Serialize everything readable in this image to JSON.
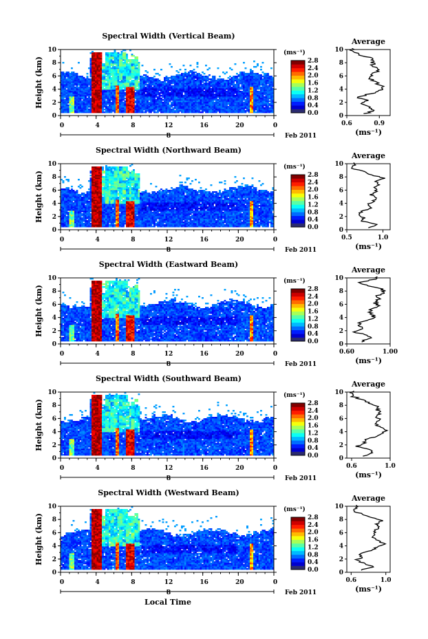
{
  "figure": {
    "xlabel": "Local Time",
    "date_label": "Feb 2011",
    "day_marker": "8",
    "colorbar_unit": "(ms⁻¹)",
    "colorbar_ticks": [
      "0.0",
      "0.4",
      "0.8",
      "1.2",
      "1.6",
      "2.0",
      "2.4",
      "2.8"
    ],
    "average_title": "Average",
    "average_xlabel": "(ms⁻¹)"
  },
  "chart_data": [
    {
      "type": "heatmap",
      "title": "Spectral Width (Vertical Beam)",
      "ylabel": "Height (km)",
      "x_ticks": [
        "0",
        "4",
        "8",
        "12",
        "16",
        "20",
        "0"
      ],
      "xlim": [
        0,
        24
      ],
      "y_ticks": [
        "0",
        "2",
        "4",
        "6",
        "8",
        "10"
      ],
      "ylim": [
        0,
        10
      ],
      "color_range": [
        0.0,
        2.8
      ],
      "average_profile": {
        "x_ticks": [
          "0.6",
          "0.9"
        ],
        "xlim": [
          0.6,
          1.0
        ],
        "ylim": [
          0,
          10
        ],
        "height": [
          0.3,
          0.8,
          1.3,
          1.8,
          2.3,
          2.8,
          3.3,
          3.8,
          4.3,
          4.8,
          5.3,
          5.8,
          6.3,
          6.8,
          7.3,
          7.8,
          8.3,
          8.8,
          9.3,
          9.8
        ],
        "values": [
          0.78,
          0.86,
          0.8,
          0.72,
          0.78,
          0.7,
          0.82,
          0.9,
          0.94,
          0.88,
          0.85,
          0.8,
          0.84,
          0.88,
          0.86,
          0.84,
          0.85,
          0.82,
          0.7,
          0.64
        ]
      }
    },
    {
      "type": "heatmap",
      "title": "Spectral Width (Northward Beam)",
      "ylabel": "Height (km)",
      "x_ticks": [
        "0",
        "4",
        "8",
        "12",
        "16",
        "20",
        "0"
      ],
      "xlim": [
        0,
        24
      ],
      "y_ticks": [
        "0",
        "2",
        "4",
        "6",
        "8",
        "10"
      ],
      "ylim": [
        0,
        10
      ],
      "color_range": [
        0.0,
        2.8
      ],
      "average_profile": {
        "x_ticks": [
          "0.5",
          "1.0"
        ],
        "xlim": [
          0.5,
          1.1
        ],
        "ylim": [
          0,
          10
        ],
        "height": [
          0.3,
          0.8,
          1.3,
          1.8,
          2.3,
          2.8,
          3.3,
          3.8,
          4.3,
          4.8,
          5.3,
          5.8,
          6.3,
          6.8,
          7.3,
          7.8,
          8.3,
          8.8,
          9.3,
          9.8
        ],
        "values": [
          0.8,
          0.92,
          0.72,
          0.74,
          0.66,
          0.72,
          0.84,
          0.8,
          0.86,
          0.9,
          0.84,
          0.92,
          0.88,
          0.95,
          0.9,
          1.02,
          0.85,
          0.75,
          0.55,
          0.62
        ]
      }
    },
    {
      "type": "heatmap",
      "title": "Spectral Width (Eastward Beam)",
      "ylabel": "Height (km)",
      "x_ticks": [
        "0",
        "4",
        "8",
        "12",
        "16",
        "20",
        "0"
      ],
      "xlim": [
        0,
        24
      ],
      "y_ticks": [
        "0",
        "2",
        "4",
        "6",
        "8",
        "10"
      ],
      "ylim": [
        0,
        10
      ],
      "color_range": [
        0.0,
        2.8
      ],
      "average_profile": {
        "x_ticks": [
          "0.60",
          "1.00"
        ],
        "xlim": [
          0.6,
          1.0
        ],
        "ylim": [
          0,
          10
        ],
        "height": [
          0.3,
          0.8,
          1.3,
          1.8,
          2.3,
          2.8,
          3.3,
          3.8,
          4.3,
          4.8,
          5.3,
          5.8,
          6.3,
          6.8,
          7.3,
          7.8,
          8.3,
          8.8,
          9.3,
          9.8
        ],
        "values": [
          0.72,
          0.82,
          0.78,
          0.68,
          0.76,
          0.7,
          0.74,
          0.82,
          0.86,
          0.8,
          0.84,
          0.88,
          0.86,
          0.9,
          0.88,
          0.96,
          0.92,
          0.8,
          0.7,
          0.86
        ]
      }
    },
    {
      "type": "heatmap",
      "title": "Spectral Width (Southward Beam)",
      "ylabel": "Height (km)",
      "x_ticks": [
        "0",
        "4",
        "8",
        "12",
        "16",
        "20",
        "0"
      ],
      "xlim": [
        0,
        24
      ],
      "y_ticks": [
        "0",
        "2",
        "4",
        "6",
        "8",
        "10"
      ],
      "ylim": [
        0,
        10
      ],
      "color_range": [
        0.0,
        2.8
      ],
      "average_profile": {
        "x_ticks": [
          "0.6",
          "1.0"
        ],
        "xlim": [
          0.55,
          1.0
        ],
        "ylim": [
          0,
          10
        ],
        "height": [
          0.3,
          0.8,
          1.3,
          1.8,
          2.3,
          2.8,
          3.3,
          3.8,
          4.3,
          4.8,
          5.3,
          5.8,
          6.3,
          6.8,
          7.3,
          7.8,
          8.3,
          8.8,
          9.3,
          9.8
        ],
        "values": [
          0.74,
          0.84,
          0.78,
          0.66,
          0.74,
          0.72,
          0.86,
          0.92,
          0.96,
          0.88,
          0.84,
          0.9,
          0.84,
          0.9,
          0.86,
          0.88,
          0.8,
          0.72,
          0.62,
          0.6
        ]
      }
    },
    {
      "type": "heatmap",
      "title": "Spectral Width (Westward Beam)",
      "ylabel": "Height (km)",
      "x_ticks": [
        "0",
        "4",
        "8",
        "12",
        "16",
        "20",
        "0"
      ],
      "xlim": [
        0,
        24
      ],
      "y_ticks": [
        "0",
        "2",
        "4",
        "6",
        "8",
        "10"
      ],
      "ylim": [
        0,
        10
      ],
      "color_range": [
        0.0,
        2.8
      ],
      "average_profile": {
        "x_ticks": [
          "0.6",
          "1.0"
        ],
        "xlim": [
          0.55,
          1.05
        ],
        "ylim": [
          0,
          10
        ],
        "height": [
          0.3,
          0.8,
          1.3,
          1.8,
          2.3,
          2.8,
          3.3,
          3.8,
          4.3,
          4.8,
          5.3,
          5.8,
          6.3,
          6.8,
          7.3,
          7.8,
          8.3,
          8.8,
          9.3,
          9.8
        ],
        "values": [
          0.7,
          0.86,
          0.76,
          0.66,
          0.72,
          0.7,
          0.84,
          0.88,
          0.98,
          0.9,
          0.84,
          0.88,
          0.86,
          0.92,
          0.88,
          0.96,
          0.82,
          0.74,
          0.62,
          0.66
        ]
      }
    }
  ]
}
